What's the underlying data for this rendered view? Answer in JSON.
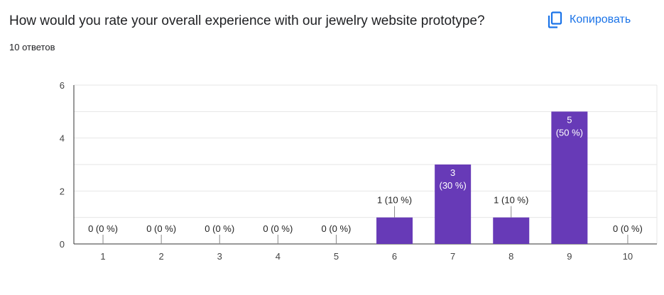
{
  "header": {
    "question": "How would you rate your overall experience with our jewelry website prototype?",
    "responses": "10 ответов",
    "copy_label": "Копировать",
    "copy_icon": "copy-icon"
  },
  "colors": {
    "bar": "#673ab7",
    "accent": "#1a73e8",
    "grid": "#e6e6e6",
    "axis": "#333333",
    "label_inside": "#ffffff",
    "label_outside": "#222222"
  },
  "chart_data": {
    "type": "bar",
    "title": "",
    "xlabel": "",
    "ylabel": "",
    "categories": [
      "1",
      "2",
      "3",
      "4",
      "5",
      "6",
      "7",
      "8",
      "9",
      "10"
    ],
    "values": [
      0,
      0,
      0,
      0,
      0,
      1,
      3,
      1,
      5,
      0
    ],
    "labels": [
      "0 (0 %)",
      "0 (0 %)",
      "0 (0 %)",
      "0 (0 %)",
      "0 (0 %)",
      "1 (10 %)",
      "3\n(30 %)",
      "1 (10 %)",
      "5\n(50 %)",
      "0 (0 %)"
    ],
    "ylim": [
      0,
      6
    ],
    "yticks": [
      0,
      2,
      4,
      6
    ],
    "grid": true,
    "legend": "none"
  }
}
